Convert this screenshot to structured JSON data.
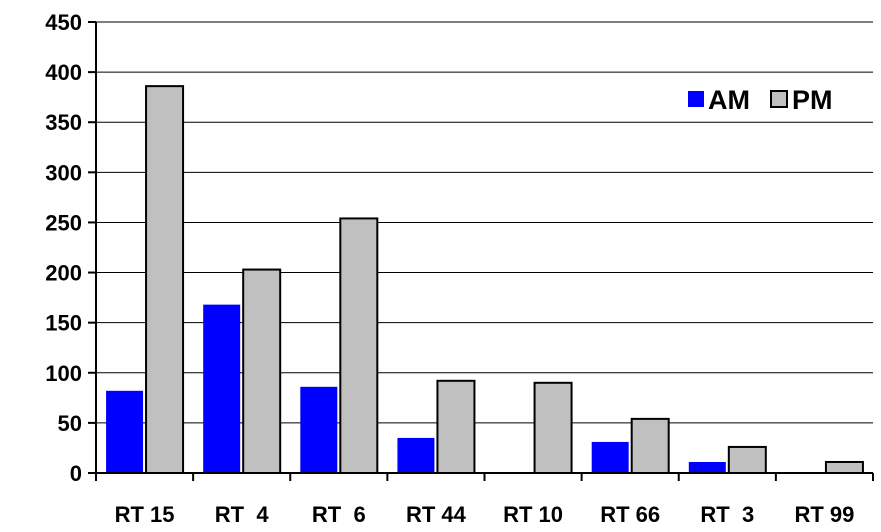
{
  "chart_data": {
    "type": "bar",
    "categories": [
      "RT 15",
      "RT  4",
      "RT  6",
      "RT 44",
      "RT 10",
      "RT 66",
      "RT  3",
      "RT 99"
    ],
    "series": [
      {
        "name": "AM",
        "values": [
          82,
          168,
          86,
          35,
          0,
          31,
          11,
          0
        ],
        "color": "#0000ff"
      },
      {
        "name": "PM",
        "values": [
          386,
          203,
          254,
          92,
          90,
          54,
          26,
          11
        ],
        "color": "#c0c0c0"
      }
    ],
    "yticks": [
      "0",
      "50",
      "100",
      "150",
      "200",
      "250",
      "300",
      "350",
      "400",
      "450"
    ],
    "ylim": [
      0,
      450
    ],
    "grid": true,
    "legend_position": "top-right"
  }
}
